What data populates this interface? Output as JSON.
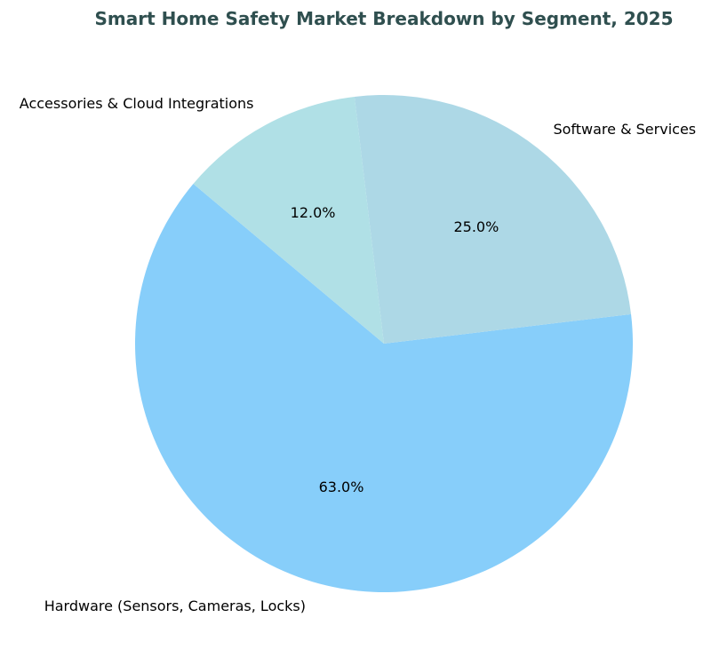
{
  "chart_data": {
    "type": "pie",
    "title": "Smart Home Safety Market Breakdown by Segment, 2025",
    "start_angle_deg": 140,
    "direction": "counterclockwise",
    "slices": [
      {
        "label": "Hardware (Sensors, Cameras, Locks)",
        "value": 63.0,
        "pct_label": "63.0%",
        "color": "#87CEFA"
      },
      {
        "label": "Software & Services",
        "value": 25.0,
        "pct_label": "25.0%",
        "color": "#ADD8E6"
      },
      {
        "label": "Accessories & Cloud Integrations",
        "value": 12.0,
        "pct_label": "12.0%",
        "color": "#B0E0E6"
      }
    ],
    "title_color": "#2F4F4F"
  }
}
